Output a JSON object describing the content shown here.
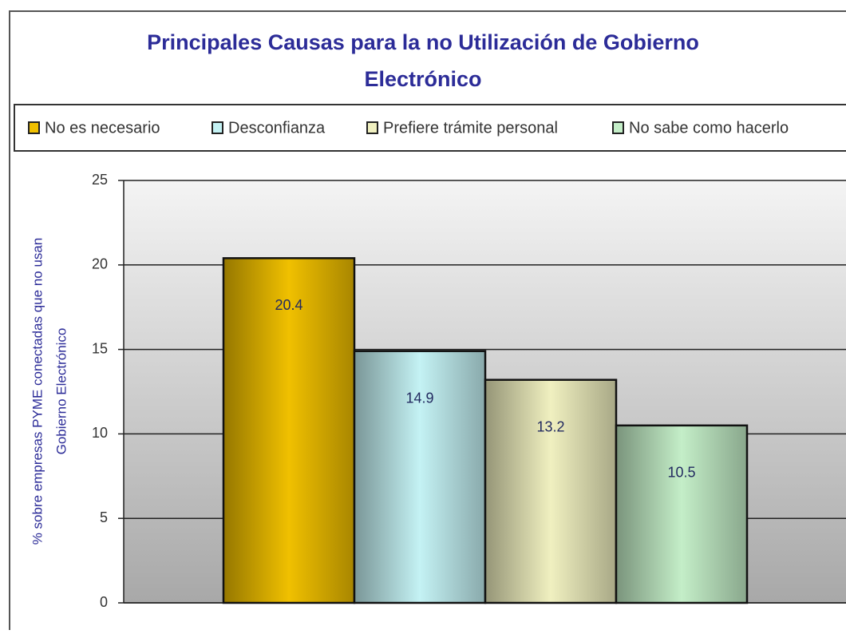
{
  "chart_data": {
    "type": "bar",
    "title": [
      "Principales Causas para la no Utilización de Gobierno",
      "Electrónico"
    ],
    "y_label": [
      "% sobre empresas PYME conectadas que no usan",
      "Gobierno Electrónico"
    ],
    "categories": [
      null
    ],
    "series": [
      {
        "name": "No es necesario",
        "color": "#f0c000",
        "values": [
          20.4
        ]
      },
      {
        "name": "Desconfianza",
        "color": "#c4f2f4",
        "values": [
          14.9
        ]
      },
      {
        "name": "Prefiere trámite personal",
        "color": "#f0f0c0",
        "values": [
          13.2
        ]
      },
      {
        "name": "No sabe como hacerlo",
        "color": "#c4eec8",
        "values": [
          10.5
        ]
      }
    ],
    "ylim": [
      0,
      25
    ],
    "yticks": [
      0,
      5,
      10,
      15,
      20,
      25
    ],
    "grid": true,
    "legend": "top"
  }
}
